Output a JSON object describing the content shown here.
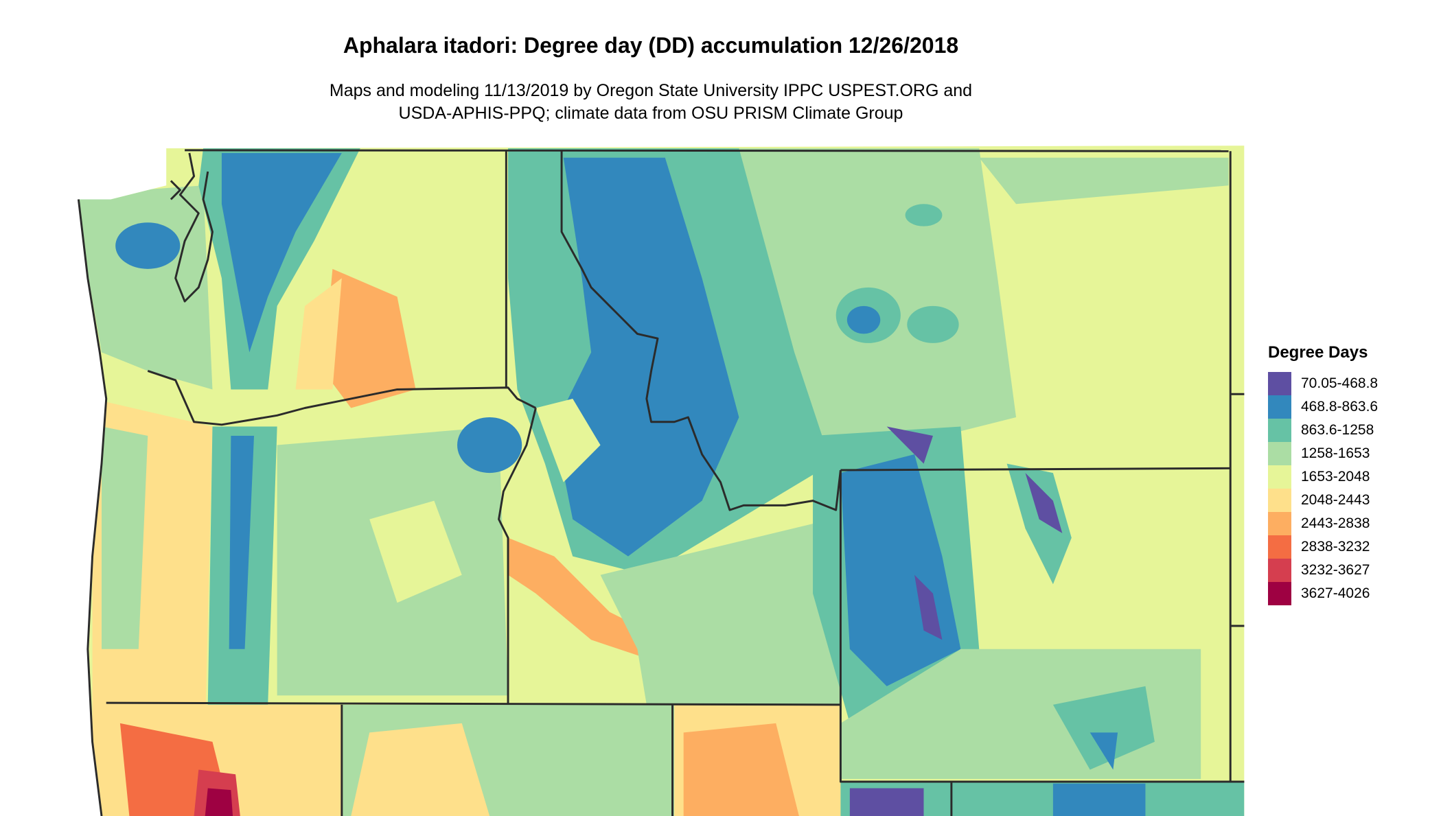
{
  "title": "Aphalara itadori: Degree day (DD) accumulation 12/26/2018",
  "subtitle": {
    "line1": "Maps and modeling 11/13/2019 by Oregon State University IPPC USPEST.ORG and",
    "line2": "USDA-APHIS-PPQ; climate data from OSU PRISM Climate Group"
  },
  "legend": {
    "title": "Degree Days",
    "items": [
      {
        "label": "70.05-468.8",
        "color": "#5e4fa2"
      },
      {
        "label": "468.8-863.6",
        "color": "#3288bd"
      },
      {
        "label": "863.6-1258",
        "color": "#66c2a5"
      },
      {
        "label": "1258-1653",
        "color": "#abdda4"
      },
      {
        "label": "1653-2048",
        "color": "#e6f598"
      },
      {
        "label": "2048-2443",
        "color": "#fee08b"
      },
      {
        "label": "2443-2838",
        "color": "#fdae61"
      },
      {
        "label": "2838-3232",
        "color": "#f46d43"
      },
      {
        "label": "3232-3627",
        "color": "#d53e4f"
      },
      {
        "label": "3627-4026",
        "color": "#9e0142"
      }
    ]
  }
}
